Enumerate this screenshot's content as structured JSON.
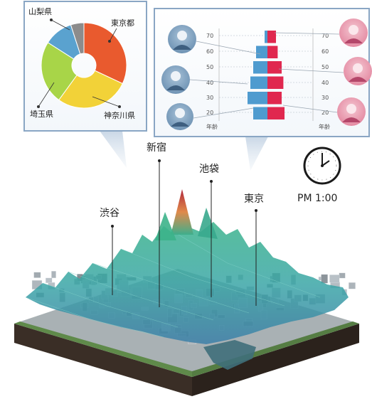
{
  "pie_panel": {
    "labels": {
      "yamanashi": "山梨県",
      "tokyo": "東京都",
      "kanagawa": "神奈川県",
      "saitama": "埼玉県"
    },
    "colors": {
      "tokyo": "#E95A2E",
      "kanagawa": "#F2D238",
      "saitama": "#A8D548",
      "yamanashi": "#5AA2CF",
      "other": "#8C8C8C"
    }
  },
  "pyramid_panel": {
    "ticks_left": [
      "70",
      "60",
      "50",
      "40",
      "30",
      "20"
    ],
    "ticks_right": [
      "70",
      "60",
      "50",
      "40",
      "30",
      "20"
    ],
    "axis_label_left": "年齢",
    "axis_label_right": "年齢",
    "colors": {
      "male": "#4F9BCF",
      "female": "#E0284F"
    }
  },
  "map_labels": {
    "shibuya": "渋谷",
    "shinjuku": "新宿",
    "ikebukuro": "池袋",
    "tokyo": "東京"
  },
  "clock": {
    "time_text": "PM 1:00"
  },
  "chart_data": [
    {
      "type": "pie",
      "donut": true,
      "labels": [
        "東京都",
        "神奈川県",
        "埼玉県",
        "山梨県",
        ""
      ],
      "values": [
        32,
        28,
        24,
        11,
        5
      ],
      "colors": [
        "#E95A2E",
        "#F2D238",
        "#A8D548",
        "#5AA2CF",
        "#8C8C8C"
      ]
    },
    {
      "type": "bar",
      "orientation": "horizontal",
      "categories": [
        "70",
        "60",
        "50",
        "40",
        "30",
        "20"
      ],
      "series": [
        {
          "values": [
            0.5,
            2.0,
            2.5,
            3.0,
            3.5,
            2.5
          ]
        },
        {
          "values": [
            1.5,
            1.8,
            2.5,
            2.8,
            2.5,
            3.0
          ]
        }
      ]
    }
  ]
}
